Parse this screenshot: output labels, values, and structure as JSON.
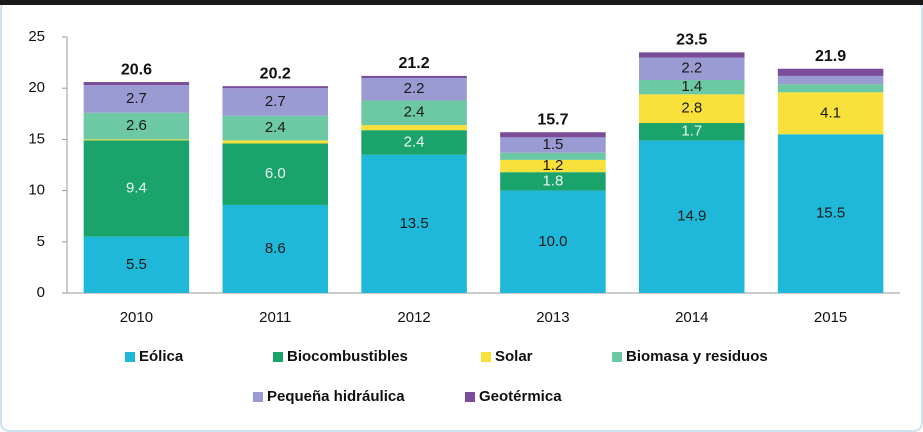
{
  "chart_data": {
    "type": "stacked-bar",
    "categories": [
      "2010",
      "2011",
      "2012",
      "2013",
      "2014",
      "2015"
    ],
    "series": [
      {
        "name": "Eólica",
        "color": "#1fb8d8",
        "values": [
          5.5,
          8.6,
          13.5,
          10.0,
          14.9,
          15.5
        ],
        "value_labels": [
          "5.5",
          "8.6",
          "13.5",
          "10.0",
          "14.9",
          "15.5"
        ]
      },
      {
        "name": "Biocombustibles",
        "color": "#1aa36b",
        "values": [
          9.4,
          6.0,
          2.4,
          1.8,
          1.7,
          0
        ],
        "value_labels": [
          "9.4",
          "6.0",
          "2.4",
          "1.8",
          "1.7",
          null
        ]
      },
      {
        "name": "Solar",
        "color": "#f7e13a",
        "values": [
          0.1,
          0.3,
          0.5,
          1.2,
          2.8,
          4.1
        ],
        "value_labels": [
          null,
          null,
          null,
          "1.2",
          "2.8",
          "4.1"
        ]
      },
      {
        "name": "Biomasa y residuos",
        "color": "#6dc9a3",
        "values": [
          2.6,
          2.4,
          2.4,
          0.7,
          1.4,
          0.8
        ],
        "value_labels": [
          "2.6",
          "2.4",
          "2.4",
          null,
          "1.4",
          null
        ]
      },
      {
        "name": "Pequeña hidráulica",
        "color": "#9b9bd4",
        "values": [
          2.7,
          2.7,
          2.2,
          1.5,
          2.2,
          0.8
        ],
        "value_labels": [
          "2.7",
          "2.7",
          "2.2",
          "1.5",
          "2.2",
          null
        ]
      },
      {
        "name": "Geotérmica",
        "color": "#7a4c9a",
        "values": [
          0.3,
          0.2,
          0.2,
          0.5,
          0.5,
          0.7
        ],
        "value_labels": [
          null,
          null,
          null,
          null,
          null,
          null
        ]
      }
    ],
    "totals": [
      20.6,
      20.2,
      21.2,
      15.7,
      23.5,
      21.9
    ],
    "ylim": [
      0,
      25
    ],
    "yticks": [
      0,
      5,
      10,
      15,
      20,
      25
    ],
    "grid": false,
    "legend": "bottom"
  }
}
